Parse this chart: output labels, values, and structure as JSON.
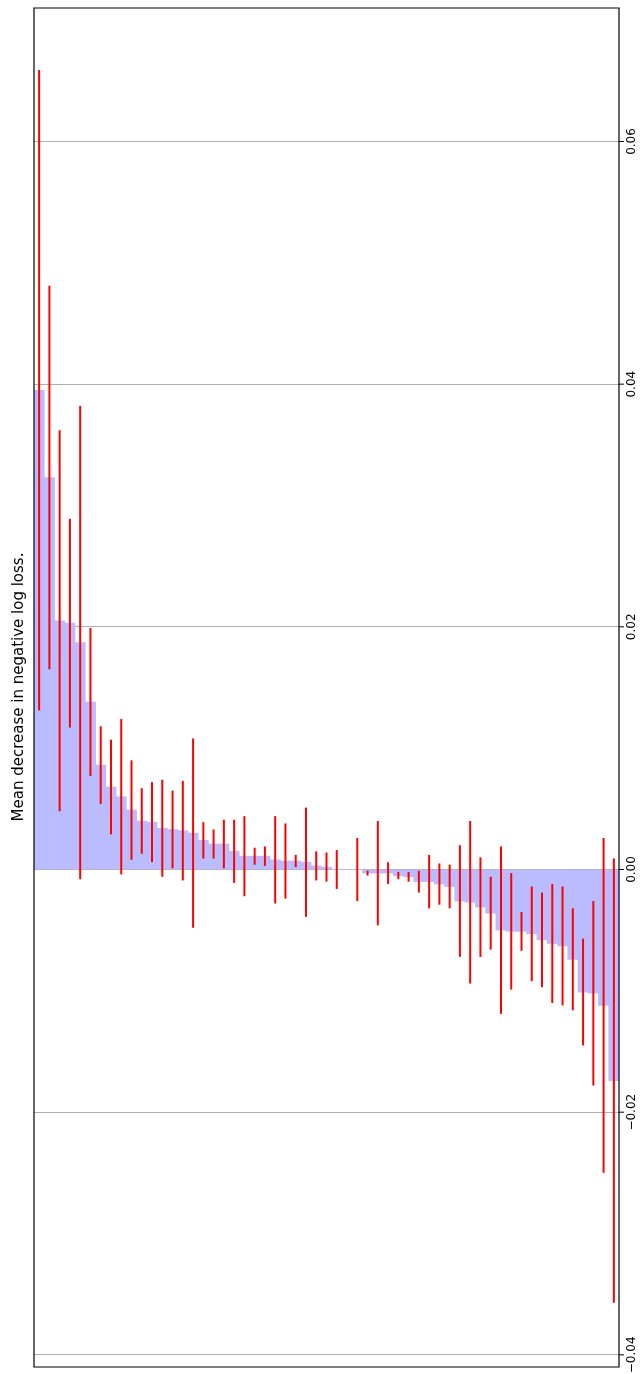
{
  "chart_data": {
    "type": "bar",
    "ylabel": "Mean decrease in negative log loss.",
    "categories": [
      null,
      null,
      null,
      null,
      null,
      null,
      null,
      null,
      null,
      null,
      null,
      null,
      null,
      null,
      null,
      null,
      null,
      null,
      null,
      null,
      null,
      null,
      null,
      null,
      null,
      null,
      null,
      null,
      null,
      null,
      null,
      null,
      null,
      null,
      null,
      null,
      null,
      null,
      null,
      null,
      null,
      null,
      null,
      null,
      null,
      null,
      null,
      null,
      null,
      null,
      null,
      null,
      null,
      null,
      null,
      null,
      null
    ],
    "values": [
      0.0395,
      0.0323,
      0.0205,
      0.0203,
      0.0187,
      0.0138,
      0.0086,
      0.0068,
      0.006,
      0.0049,
      0.004,
      0.0039,
      0.0034,
      0.0033,
      0.0032,
      0.003,
      0.0024,
      0.0021,
      0.0021,
      0.0015,
      0.0011,
      0.0011,
      0.0011,
      0.0008,
      0.0007,
      0.0007,
      0.0006,
      0.0003,
      0.0002,
      0.0,
      0.0,
      0.0,
      -0.0003,
      -0.0003,
      -0.0003,
      -0.0005,
      -0.0006,
      -0.001,
      -0.001,
      -0.0012,
      -0.0014,
      -0.0026,
      -0.0027,
      -0.0031,
      -0.0036,
      -0.005,
      -0.0051,
      -0.0051,
      -0.0053,
      -0.0058,
      -0.0061,
      -0.0063,
      -0.0074,
      -0.0101,
      -0.0102,
      -0.0112,
      -0.0174
    ],
    "errors": [
      0.0264,
      0.0158,
      0.0157,
      0.0086,
      0.0195,
      0.0061,
      0.0032,
      0.0039,
      0.0064,
      0.0041,
      0.0027,
      0.0033,
      0.004,
      0.0032,
      0.0041,
      0.0078,
      0.0015,
      0.0012,
      0.002,
      0.0026,
      0.0033,
      0.0007,
      0.0008,
      0.0036,
      0.0031,
      0.0005,
      0.0045,
      0.0012,
      0.0012,
      0.0016,
      null,
      0.0026,
      0.0002,
      0.0043,
      0.0009,
      0.0003,
      0.0004,
      0.0009,
      0.0022,
      0.0017,
      0.0018,
      0.0046,
      0.0067,
      0.0041,
      0.003,
      0.0069,
      0.0048,
      0.0016,
      0.0039,
      0.0039,
      0.0049,
      0.0049,
      0.0042,
      0.0044,
      0.0076,
      0.0138,
      0.0183
    ],
    "color": "#bbbbff",
    "ylim": [
      -0.041,
      0.071
    ],
    "yticks": [
      {
        "value": -0.04,
        "label": "−0.04"
      },
      {
        "value": -0.02,
        "label": "−0.02"
      },
      {
        "value": 0,
        "label": "0.00"
      },
      {
        "value": 0.02,
        "label": "0.02"
      },
      {
        "value": 0.04,
        "label": "0.04"
      },
      {
        "value": 0.06,
        "label": "0.06"
      }
    ],
    "grid": "y",
    "tick_labels": "y",
    "legend": false
  }
}
